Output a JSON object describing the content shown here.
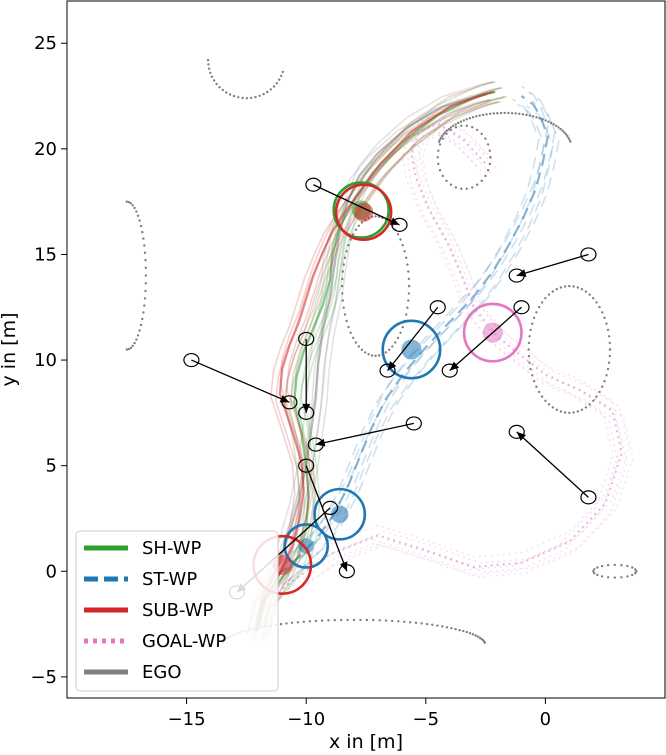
{
  "chart_data": {
    "type": "line",
    "xlabel": "x in [m]",
    "ylabel": "y in [m]",
    "xlim": [
      -20,
      5
    ],
    "ylim": [
      -6,
      27
    ],
    "x_ticks": [
      -15,
      -10,
      -5,
      0
    ],
    "x_tick_labels": [
      "−15",
      "−10",
      "−5",
      "0"
    ],
    "y_ticks": [
      -5,
      0,
      5,
      10,
      15,
      20,
      25
    ],
    "y_tick_labels": [
      "−5",
      "0",
      "5",
      "10",
      "15",
      "20",
      "25"
    ],
    "grid": false,
    "legend_position": "lower-left",
    "colors": {
      "SH-WP": "#2ca02c",
      "ST-WP": "#1f77b4",
      "SUB-WP": "#d62728",
      "GOAL-WP": "#e377c2",
      "EGO": "#7f7f7f"
    },
    "series": [
      {
        "name": "SH-WP",
        "style": "solid",
        "x": [
          -12.1,
          -11.8,
          -11.0,
          -10.3,
          -10.0,
          -9.9,
          -10.0,
          -10.2,
          -10.5,
          -10.4,
          -10.1,
          -9.7,
          -9.3,
          -9.0,
          -8.9,
          -8.6,
          -8.0,
          -7.2,
          -6.0,
          -4.5,
          -2.8,
          -2.1
        ],
        "y": [
          -2.9,
          -1.4,
          -0.3,
          0.7,
          2.0,
          3.5,
          5.0,
          6.5,
          8.0,
          9.2,
          10.4,
          11.5,
          12.6,
          13.8,
          15.0,
          16.3,
          17.6,
          18.9,
          20.3,
          21.6,
          22.5,
          22.7
        ]
      },
      {
        "name": "ST-WP",
        "style": "dashed",
        "x": [
          -11.2,
          -10.4,
          -9.6,
          -8.9,
          -8.3,
          -7.8,
          -7.3,
          -6.7,
          -5.9,
          -5.0,
          -4.0,
          -3.0,
          -2.2,
          -1.5,
          -0.9,
          -0.4,
          -0.1,
          0.1,
          -0.2,
          -0.5,
          -1.0
        ],
        "y": [
          -0.2,
          0.6,
          1.5,
          2.6,
          3.9,
          5.3,
          6.7,
          8.1,
          9.4,
          10.6,
          11.8,
          13.0,
          14.2,
          15.5,
          16.8,
          18.1,
          19.4,
          20.6,
          21.5,
          22.1,
          22.5
        ]
      },
      {
        "name": "SUB-WP",
        "style": "solid",
        "x": [
          -12.0,
          -11.7,
          -11.1,
          -10.6,
          -10.3,
          -10.1,
          -10.2,
          -10.6,
          -11.1,
          -11.0,
          -10.7,
          -10.3,
          -10.0,
          -9.7,
          -9.3,
          -8.9,
          -8.4,
          -7.8,
          -6.9,
          -5.6,
          -4.0,
          -2.2
        ],
        "y": [
          -2.8,
          -1.3,
          -0.1,
          1.1,
          2.4,
          3.8,
          5.2,
          6.7,
          8.4,
          9.6,
          10.7,
          11.8,
          12.9,
          14.0,
          15.1,
          16.1,
          17.0,
          17.9,
          19.3,
          20.8,
          22.0,
          22.7
        ]
      },
      {
        "name": "GOAL-WP",
        "style": "dotted",
        "x": [
          -11.0,
          -9.0,
          -7.0,
          -5.0,
          -3.0,
          -1.0,
          1.0,
          2.5,
          3.2,
          2.8,
          1.4,
          0.0,
          -1.0,
          -2.0,
          -3.0,
          -3.5,
          -4.1,
          -4.9,
          -5.4,
          -5.6,
          -5.3,
          -4.5,
          -3.4,
          -2.5
        ],
        "y": [
          -0.8,
          0.8,
          1.7,
          1.0,
          0.2,
          0.4,
          1.4,
          3.2,
          5.6,
          7.6,
          8.6,
          9.3,
          10.2,
          11.1,
          12.5,
          14.0,
          15.6,
          17.2,
          18.6,
          19.8,
          20.8,
          21.2,
          20.4,
          19.3
        ]
      },
      {
        "name": "EGO",
        "style": "solid",
        "x": [
          -12.1,
          -11.8,
          -11.2,
          -10.7,
          -10.3,
          -10.0,
          -9.8,
          -9.6,
          -9.5,
          -9.3,
          -9.0,
          -8.8,
          -8.6,
          -8.3,
          -7.8,
          -7.0,
          -5.8,
          -4.3,
          -2.6,
          -2.1
        ],
        "y": [
          -2.8,
          -1.3,
          0.2,
          1.8,
          3.4,
          5.0,
          6.6,
          8.2,
          9.8,
          11.4,
          13.0,
          14.6,
          16.0,
          17.4,
          18.7,
          19.8,
          21.0,
          22.0,
          22.6,
          22.7
        ]
      }
    ],
    "target_circles": [
      {
        "series": "SH-WP",
        "x": -7.7,
        "y": 17.1,
        "radius_data_x": 1.15
      },
      {
        "series": "SUB-WP",
        "x": -7.6,
        "y": 17.0,
        "radius_data_x": 1.15
      },
      {
        "series": "ST-WP",
        "x": -5.6,
        "y": 10.5,
        "radius_data_x": 1.2
      },
      {
        "series": "GOAL-WP",
        "x": -2.2,
        "y": 11.3,
        "radius_data_x": 1.2
      },
      {
        "series": "ST-WP",
        "x": -8.6,
        "y": 2.7,
        "radius_data_x": 1.05
      },
      {
        "series": "ST-WP",
        "x": -10.0,
        "y": 1.2,
        "radius_data_x": 0.9
      },
      {
        "series": "SUB-WP",
        "x": -11.0,
        "y": 0.3,
        "radius_data_x": 1.2
      }
    ],
    "agents": [
      {
        "from": [
          -9.7,
          18.3
        ],
        "to": [
          -6.1,
          16.4
        ]
      },
      {
        "from": [
          1.8,
          15.0
        ],
        "to": [
          -1.2,
          14.0
        ]
      },
      {
        "from": [
          -4.5,
          12.5
        ],
        "to": [
          -6.6,
          9.5
        ]
      },
      {
        "from": [
          -1.0,
          12.5
        ],
        "to": [
          -4.0,
          9.5
        ]
      },
      {
        "from": [
          -14.8,
          10.0
        ],
        "to": [
          -10.7,
          8.0
        ]
      },
      {
        "from": [
          -10.0,
          11.0
        ],
        "to": [
          -10.0,
          7.5
        ]
      },
      {
        "from": [
          -5.5,
          7.0
        ],
        "to": [
          -9.6,
          6.0
        ]
      },
      {
        "from": [
          1.8,
          3.5
        ],
        "to": [
          -1.2,
          6.6
        ]
      },
      {
        "from": [
          -10.0,
          5.0
        ],
        "to": [
          -8.3,
          0.0
        ]
      },
      {
        "from": [
          -9.0,
          3.0
        ],
        "to": [
          -12.9,
          -1.0
        ]
      }
    ],
    "map_points_series": "EGO"
  }
}
